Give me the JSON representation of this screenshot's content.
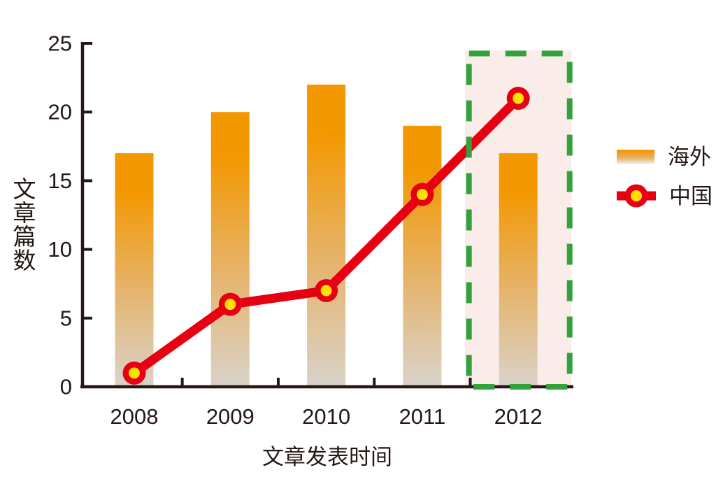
{
  "figure": {
    "background": "#FFFFFF"
  },
  "chart_data": {
    "type": "bar",
    "combo": "bar+line",
    "title": "",
    "categories": [
      "2008",
      "2009",
      "2010",
      "2011",
      "2012"
    ],
    "series": [
      {
        "name": "海外",
        "type": "bar",
        "values": [
          17,
          20,
          22,
          19,
          17
        ]
      },
      {
        "name": "中国",
        "type": "line",
        "values": [
          1,
          6,
          7,
          14,
          21
        ]
      }
    ],
    "xlabel": "文章发表时间",
    "ylabel": "文章篇数",
    "ylim": [
      0,
      25
    ],
    "yticks": [
      0,
      5,
      10,
      15,
      20,
      25
    ],
    "grid": false,
    "legend_position": "right",
    "highlight": {
      "category": "2012",
      "style": "dashed-rectangle",
      "border_color": "#33A23D",
      "fill_color": "#FAEDE9"
    },
    "colors": {
      "bar_gradient_top": "#F39800",
      "bar_gradient_mid": "#E6B36A",
      "bar_gradient_bottom": "#D9D3CB",
      "line": "#E60012",
      "marker_ring": "#E60012",
      "marker_fill": "#FFE100",
      "axis": "#231815",
      "text": "#231815"
    }
  }
}
